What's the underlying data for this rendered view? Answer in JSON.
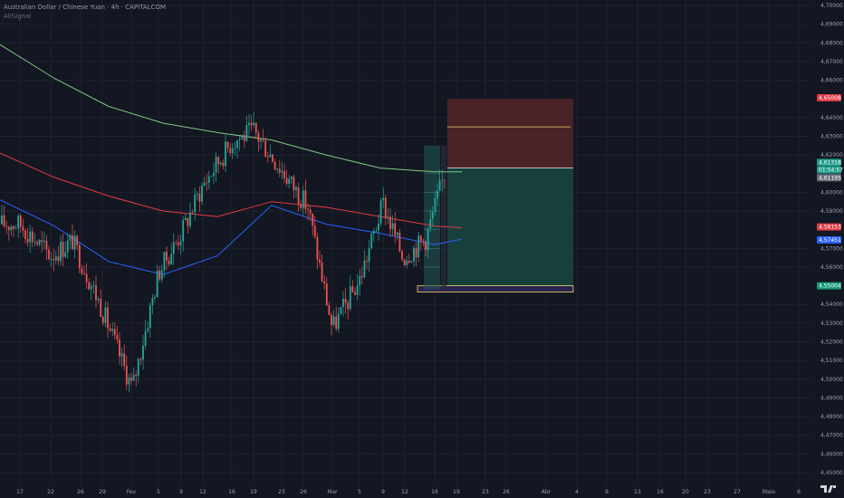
{
  "legend": {
    "symbol": "Australian Dollar / Chinese Yuan · 4h · CAPITALCOM",
    "sub": "AllSignal"
  },
  "colors": {
    "background": "#131722",
    "grid": "#1e2230",
    "up": "#26a69a",
    "down": "#ef5350",
    "ma_green": "#81c784",
    "ma_red": "#e53945",
    "ma_blue": "#2962ff",
    "stop_zone": "#4a2328",
    "target_zone": "#17403d",
    "yellow": "#f5d16b"
  },
  "price_axis": {
    "labels": [
      "4,70000",
      "4,69000",
      "4,68000",
      "4,67000",
      "4,66000",
      "4,64000",
      "4,63000",
      "4,62000",
      "4,60000",
      "4,59000",
      "4,57000",
      "4,56000",
      "4,54000",
      "4,53000",
      "4,52000",
      "4,51000",
      "4,50000",
      "4,49000",
      "4,48000",
      "4,47000",
      "4,46000",
      "4,45000"
    ]
  },
  "time_axis": {
    "labels": [
      "17",
      "22",
      "26",
      "29",
      "Fev",
      "5",
      "9",
      "12",
      "16",
      "19",
      "23",
      "26",
      "Mar",
      "5",
      "9",
      "12",
      "16",
      "19",
      "23",
      "26",
      "Abr",
      "4",
      "9",
      "13",
      "16",
      "20",
      "23",
      "27",
      "Maio",
      "6"
    ]
  },
  "price_tags": {
    "stop": "4,65008",
    "current": "4,61318",
    "countdown": "01:54:57",
    "last": "4,61195",
    "ma_red": "4,58153",
    "ma_blue": "4,57451",
    "target": "4,55004"
  },
  "chart_data": {
    "type": "candlestick",
    "title": "Australian Dollar / Chinese Yuan · 4h · CAPITALCOM",
    "ylim": [
      4.45,
      4.7
    ],
    "x_ticks": [
      "17",
      "22",
      "26",
      "29",
      "Fev",
      "5",
      "9",
      "12",
      "16",
      "19",
      "23",
      "26",
      "Mar",
      "5",
      "9",
      "12",
      "16",
      "19",
      "23",
      "26",
      "Abr",
      "4",
      "9",
      "13",
      "16",
      "20",
      "23",
      "27",
      "Maio",
      "6"
    ],
    "close_path": [
      {
        "x": "17",
        "y": 4.583
      },
      {
        "x": "22",
        "y": 4.566
      },
      {
        "x": "26",
        "y": 4.574
      },
      {
        "x": "29",
        "y": 4.537
      },
      {
        "x": "Fev",
        "y": 4.495
      },
      {
        "x": "5",
        "y": 4.557
      },
      {
        "x": "9",
        "y": 4.578
      },
      {
        "x": "12",
        "y": 4.604
      },
      {
        "x": "16",
        "y": 4.627
      },
      {
        "x": "19",
        "y": 4.633
      },
      {
        "x": "23",
        "y": 4.612
      },
      {
        "x": "26",
        "y": 4.592
      },
      {
        "x": "Mar",
        "y": 4.527
      },
      {
        "x": "5",
        "y": 4.553
      },
      {
        "x": "9",
        "y": 4.594
      },
      {
        "x": "12",
        "y": 4.565
      },
      {
        "x": "16",
        "y": 4.612
      }
    ],
    "moving_averages": [
      {
        "color": "green",
        "values": [
          4.679,
          4.661,
          4.646,
          4.637,
          4.632,
          4.628,
          4.62,
          4.613
        ]
      },
      {
        "color": "red",
        "values": [
          4.621,
          4.608,
          4.598,
          4.59,
          4.587,
          4.595,
          4.587,
          4.581
        ]
      },
      {
        "color": "blue",
        "values": [
          4.596,
          4.582,
          4.563,
          4.556,
          4.566,
          4.593,
          4.58,
          4.575
        ]
      }
    ],
    "position": {
      "type": "short",
      "entry": 4.613,
      "stop": 4.65,
      "target": 4.55,
      "yellow_line": 4.635
    }
  }
}
